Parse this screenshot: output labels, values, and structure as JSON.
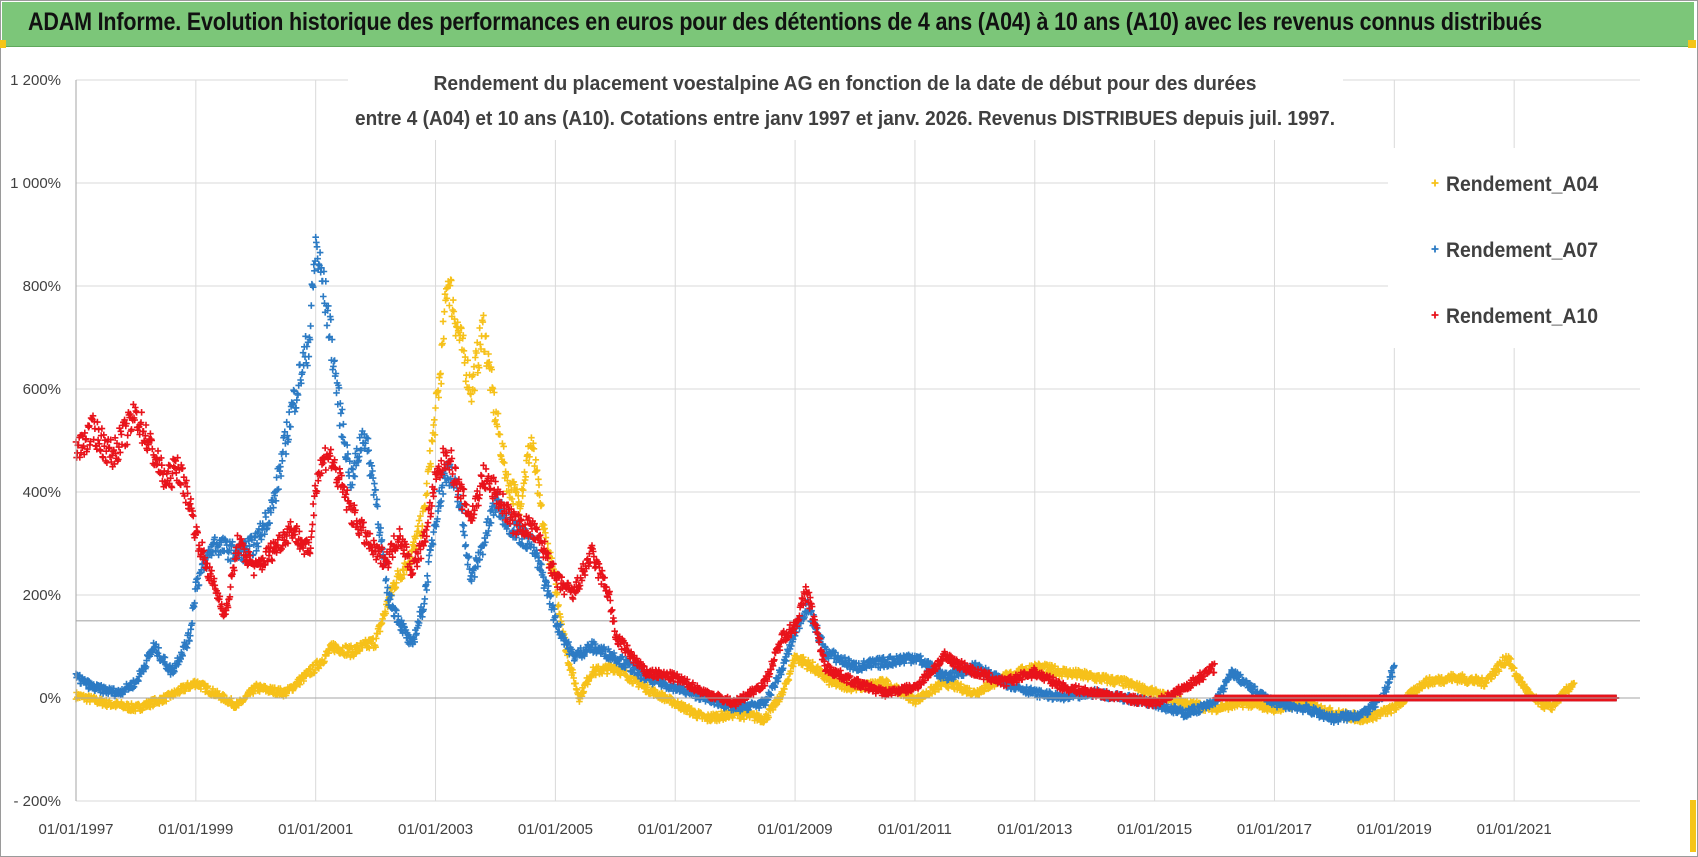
{
  "header": {
    "title": "ADAM Informe. Evolution historique des performances en euros pour des détentions de 4 ans (A04) à 10 ans (A10) avec les revenus connus distribués"
  },
  "colors": {
    "banner": "#7cc679",
    "corner": "#f5c518"
  },
  "chart_data": {
    "type": "scatter",
    "title_lines": [
      "Rendement du placement voestalpine AG en fonction de la date de début pour des durées",
      "entre 4 (A04) et 10 ans (A10).  Cotations entre janv 1997 et  janv. 2026. Revenus DISTRIBUES depuis juil. 1997."
    ],
    "x_tick_labels": [
      "01/01/1997",
      "01/01/1999",
      "01/01/2001",
      "01/01/2003",
      "01/01/2005",
      "01/01/2007",
      "01/01/2009",
      "01/01/2011",
      "01/01/2013",
      "01/01/2015",
      "01/01/2017",
      "01/01/2019",
      "01/01/2021"
    ],
    "x_range": [
      1997.0,
      2023.1
    ],
    "y_ticks": [
      -200,
      0,
      200,
      400,
      600,
      800,
      1000,
      1200
    ],
    "y_tick_labels": [
      "- 200%",
      "0%",
      "200%",
      "400%",
      "600%",
      "800%",
      "1 000%",
      "1 200%"
    ],
    "y_range": [
      -200,
      1200
    ],
    "reference_line": 150,
    "legend_position": "right",
    "series": [
      {
        "name": "Rendement_A04",
        "color": "#f6c11a",
        "end": 2022.0,
        "points": [
          [
            1997.0,
            5
          ],
          [
            1997.5,
            -10
          ],
          [
            1998.0,
            -20
          ],
          [
            1998.5,
            0
          ],
          [
            1999.0,
            30
          ],
          [
            1999.3,
            10
          ],
          [
            1999.7,
            -15
          ],
          [
            2000.0,
            20
          ],
          [
            2000.5,
            10
          ],
          [
            2001.0,
            60
          ],
          [
            2001.3,
            100
          ],
          [
            2001.6,
            90
          ],
          [
            2002.0,
            110
          ],
          [
            2002.3,
            220
          ],
          [
            2002.6,
            280
          ],
          [
            2002.8,
            350
          ],
          [
            2003.0,
            550
          ],
          [
            2003.1,
            650
          ],
          [
            2003.2,
            820
          ],
          [
            2003.4,
            700
          ],
          [
            2003.6,
            600
          ],
          [
            2003.8,
            720
          ],
          [
            2004.0,
            550
          ],
          [
            2004.2,
            420
          ],
          [
            2004.4,
            380
          ],
          [
            2004.6,
            500
          ],
          [
            2004.8,
            330
          ],
          [
            2005.0,
            220
          ],
          [
            2005.2,
            80
          ],
          [
            2005.4,
            0
          ],
          [
            2005.6,
            50
          ],
          [
            2006.0,
            60
          ],
          [
            2006.5,
            20
          ],
          [
            2007.0,
            -10
          ],
          [
            2007.5,
            -40
          ],
          [
            2008.0,
            -30
          ],
          [
            2008.5,
            -40
          ],
          [
            2008.8,
            10
          ],
          [
            2009.0,
            80
          ],
          [
            2009.3,
            60
          ],
          [
            2009.6,
            30
          ],
          [
            2010.0,
            20
          ],
          [
            2010.5,
            30
          ],
          [
            2011.0,
            -5
          ],
          [
            2011.5,
            30
          ],
          [
            2012.0,
            10
          ],
          [
            2012.5,
            40
          ],
          [
            2013.0,
            60
          ],
          [
            2013.5,
            50
          ],
          [
            2014.0,
            40
          ],
          [
            2014.5,
            30
          ],
          [
            2015.0,
            10
          ],
          [
            2015.5,
            -10
          ],
          [
            2016.0,
            -20
          ],
          [
            2016.5,
            -10
          ],
          [
            2017.0,
            -20
          ],
          [
            2017.5,
            -10
          ],
          [
            2018.0,
            -30
          ],
          [
            2018.5,
            -40
          ],
          [
            2019.0,
            -20
          ],
          [
            2019.5,
            30
          ],
          [
            2020.0,
            40
          ],
          [
            2020.5,
            30
          ],
          [
            2020.9,
            80
          ],
          [
            2021.0,
            50
          ],
          [
            2021.3,
            0
          ],
          [
            2021.6,
            -20
          ],
          [
            2022.0,
            30
          ]
        ]
      },
      {
        "name": "Rendement_A07",
        "color": "#2c7bc4",
        "end": 2019.0,
        "points": [
          [
            1997.0,
            40
          ],
          [
            1997.3,
            20
          ],
          [
            1997.7,
            10
          ],
          [
            1998.0,
            30
          ],
          [
            1998.3,
            100
          ],
          [
            1998.6,
            50
          ],
          [
            1998.9,
            120
          ],
          [
            1999.0,
            220
          ],
          [
            1999.3,
            300
          ],
          [
            1999.7,
            280
          ],
          [
            2000.0,
            300
          ],
          [
            2000.3,
            380
          ],
          [
            2000.6,
            560
          ],
          [
            2000.9,
            700
          ],
          [
            2001.0,
            880
          ],
          [
            2001.2,
            750
          ],
          [
            2001.4,
            560
          ],
          [
            2001.6,
            420
          ],
          [
            2001.8,
            520
          ],
          [
            2002.0,
            400
          ],
          [
            2002.2,
            200
          ],
          [
            2002.4,
            150
          ],
          [
            2002.6,
            100
          ],
          [
            2002.8,
            180
          ],
          [
            2003.0,
            350
          ],
          [
            2003.2,
            450
          ],
          [
            2003.4,
            380
          ],
          [
            2003.6,
            230
          ],
          [
            2003.8,
            300
          ],
          [
            2004.0,
            380
          ],
          [
            2004.3,
            330
          ],
          [
            2004.6,
            300
          ],
          [
            2004.9,
            200
          ],
          [
            2005.0,
            150
          ],
          [
            2005.3,
            80
          ],
          [
            2005.6,
            100
          ],
          [
            2006.0,
            80
          ],
          [
            2006.5,
            40
          ],
          [
            2007.0,
            20
          ],
          [
            2007.5,
            0
          ],
          [
            2008.0,
            -20
          ],
          [
            2008.5,
            -10
          ],
          [
            2008.8,
            60
          ],
          [
            2009.0,
            130
          ],
          [
            2009.2,
            180
          ],
          [
            2009.5,
            90
          ],
          [
            2010.0,
            60
          ],
          [
            2010.5,
            70
          ],
          [
            2011.0,
            80
          ],
          [
            2011.5,
            40
          ],
          [
            2012.0,
            60
          ],
          [
            2012.5,
            30
          ],
          [
            2013.0,
            10
          ],
          [
            2013.5,
            0
          ],
          [
            2014.0,
            10
          ],
          [
            2014.5,
            0
          ],
          [
            2015.0,
            -10
          ],
          [
            2015.5,
            -30
          ],
          [
            2016.0,
            -10
          ],
          [
            2016.3,
            50
          ],
          [
            2016.6,
            20
          ],
          [
            2017.0,
            -10
          ],
          [
            2017.5,
            -20
          ],
          [
            2018.0,
            -40
          ],
          [
            2018.5,
            -30
          ],
          [
            2018.8,
            0
          ],
          [
            2019.0,
            60
          ]
        ]
      },
      {
        "name": "Rendement_A10",
        "color": "#e8131b",
        "end": 2016.0,
        "points": [
          [
            1997.0,
            480
          ],
          [
            1997.3,
            520
          ],
          [
            1997.6,
            470
          ],
          [
            1998.0,
            550
          ],
          [
            1998.2,
            500
          ],
          [
            1998.5,
            420
          ],
          [
            1998.7,
            450
          ],
          [
            1998.9,
            380
          ],
          [
            1999.0,
            320
          ],
          [
            1999.2,
            250
          ],
          [
            1999.5,
            160
          ],
          [
            1999.7,
            300
          ],
          [
            2000.0,
            250
          ],
          [
            2000.3,
            290
          ],
          [
            2000.6,
            330
          ],
          [
            2000.9,
            280
          ],
          [
            2001.0,
            420
          ],
          [
            2001.2,
            480
          ],
          [
            2001.4,
            420
          ],
          [
            2001.6,
            360
          ],
          [
            2001.8,
            320
          ],
          [
            2002.0,
            280
          ],
          [
            2002.2,
            270
          ],
          [
            2002.4,
            320
          ],
          [
            2002.6,
            250
          ],
          [
            2002.8,
            300
          ],
          [
            2003.0,
            420
          ],
          [
            2003.2,
            480
          ],
          [
            2003.4,
            400
          ],
          [
            2003.6,
            350
          ],
          [
            2003.8,
            430
          ],
          [
            2004.0,
            400
          ],
          [
            2004.3,
            340
          ],
          [
            2004.6,
            330
          ],
          [
            2004.9,
            270
          ],
          [
            2005.0,
            230
          ],
          [
            2005.3,
            200
          ],
          [
            2005.6,
            280
          ],
          [
            2005.9,
            200
          ],
          [
            2006.0,
            120
          ],
          [
            2006.5,
            50
          ],
          [
            2007.0,
            40
          ],
          [
            2007.5,
            10
          ],
          [
            2008.0,
            -10
          ],
          [
            2008.5,
            30
          ],
          [
            2008.8,
            120
          ],
          [
            2009.0,
            140
          ],
          [
            2009.2,
            210
          ],
          [
            2009.5,
            60
          ],
          [
            2010.0,
            30
          ],
          [
            2010.5,
            10
          ],
          [
            2011.0,
            20
          ],
          [
            2011.5,
            80
          ],
          [
            2012.0,
            50
          ],
          [
            2012.5,
            30
          ],
          [
            2013.0,
            50
          ],
          [
            2013.5,
            20
          ],
          [
            2014.0,
            10
          ],
          [
            2014.5,
            0
          ],
          [
            2015.0,
            -10
          ],
          [
            2015.5,
            20
          ],
          [
            2016.0,
            60
          ]
        ]
      }
    ]
  }
}
